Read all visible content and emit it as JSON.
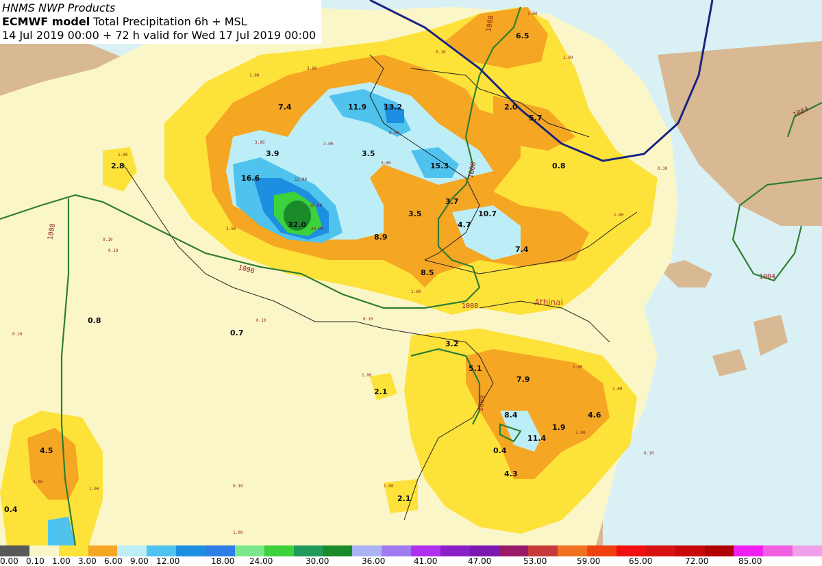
{
  "title": {
    "line1": "HNMS NWP Products",
    "line2_bold": "ECMWF model",
    "line2_rest": " Total Precipitation 6h + MSL",
    "line3": "14 Jul 2019 00:00 + 72 h valid for Wed 17 Jul 2019 00:00"
  },
  "colors": {
    "sea": "#d9f1f5",
    "land": "#d8b994",
    "precip_light": "#fbf6c8",
    "precip_yellow": "#fde23a",
    "precip_orange": "#f5a623",
    "precip_pale_blue": "#bdeef7",
    "precip_blue": "#4fc3ee",
    "precip_mid_blue": "#1d8fe0",
    "precip_green": "#3cd23c",
    "isobar_green": "#2e7d32",
    "front_navy": "#1a237e"
  },
  "city": "Athinai",
  "isobar_labels": {
    "a": "1008",
    "b": "1008",
    "c": "1008",
    "d": "1008",
    "e": "1008",
    "f": "1008",
    "g": "1004",
    "h": "1004"
  },
  "values": {
    "v1": "6.5",
    "v2": "7.4",
    "v3": "11.9",
    "v4": "13.2",
    "v5": "2.0",
    "v6": "5.7",
    "v7": "3.9",
    "v8": "3.5",
    "v9": "15.3",
    "v10": "0.8",
    "v11": "2.8",
    "v12": "16.6",
    "v13": "32.0",
    "v14": "3.7",
    "v15": "10.7",
    "v16": "3.5",
    "v17": "8.9",
    "v18": "4.7",
    "v19": "7.4",
    "v20": "8.5",
    "v21": "0.8",
    "v22": "0.7",
    "v23": "3.2",
    "v24": "5.1",
    "v25": "7.9",
    "v26": "2.1",
    "v27": "8.4",
    "v28": "4.6",
    "v29": "1.9",
    "v30": "11.4",
    "v31": "4.5",
    "v32": "0.4",
    "v33": "4.3",
    "v34": "2.1",
    "v35": "0.4"
  },
  "tiny_labels": {
    "t1": "1.00",
    "t2": "3.00",
    "t3": "1.00",
    "t4": "0.10",
    "t5": "3.00",
    "t6": "1.00",
    "t7": "3.00",
    "t8": "1.00",
    "t9": "0.10",
    "t10": "0.10",
    "t11": "1.00",
    "t12": "0.10",
    "t13": "3.00",
    "t14": "6.00",
    "t15": "12.00",
    "t16": "18.00",
    "t17": "24.00",
    "t18": "3.00",
    "t19": "1.00",
    "t20": "0.10",
    "t21": "1.00",
    "t22": "1.00",
    "t23": "0.10",
    "t24": "0.10",
    "t25": "1.00",
    "t26": "3.00",
    "t27": "1.00",
    "t28": "0.10",
    "t29": "0.10",
    "t30": "1.00",
    "t31": "3.00",
    "t32": "1.00"
  },
  "legend": {
    "colors": [
      "#595959",
      "#fbf6c8",
      "#fde23a",
      "#f5a623",
      "#bdeef7",
      "#4fc3ee",
      "#1d8fe0",
      "#2f7ee8",
      "#7ae88a",
      "#3cd23c",
      "#1f9a5a",
      "#1a8a2a",
      "#aab4f5",
      "#a07af0",
      "#b030f0",
      "#8a20c8",
      "#7a1ab0",
      "#9a1a6a",
      "#c83a3a",
      "#f07020",
      "#f04010",
      "#f01010",
      "#d81010",
      "#c80808",
      "#b00000",
      "#f020f0",
      "#f060e0",
      "#f0a0e8"
    ],
    "labels": [
      "0.00",
      "0.10",
      "1.00",
      "3.00",
      "6.00",
      "9.00",
      "12.00",
      "18.00",
      "24.00",
      "30.00",
      "36.00",
      "41.00",
      "47.00",
      "53.00",
      "59.00",
      "65.00",
      "72.00",
      "85.00"
    ]
  }
}
